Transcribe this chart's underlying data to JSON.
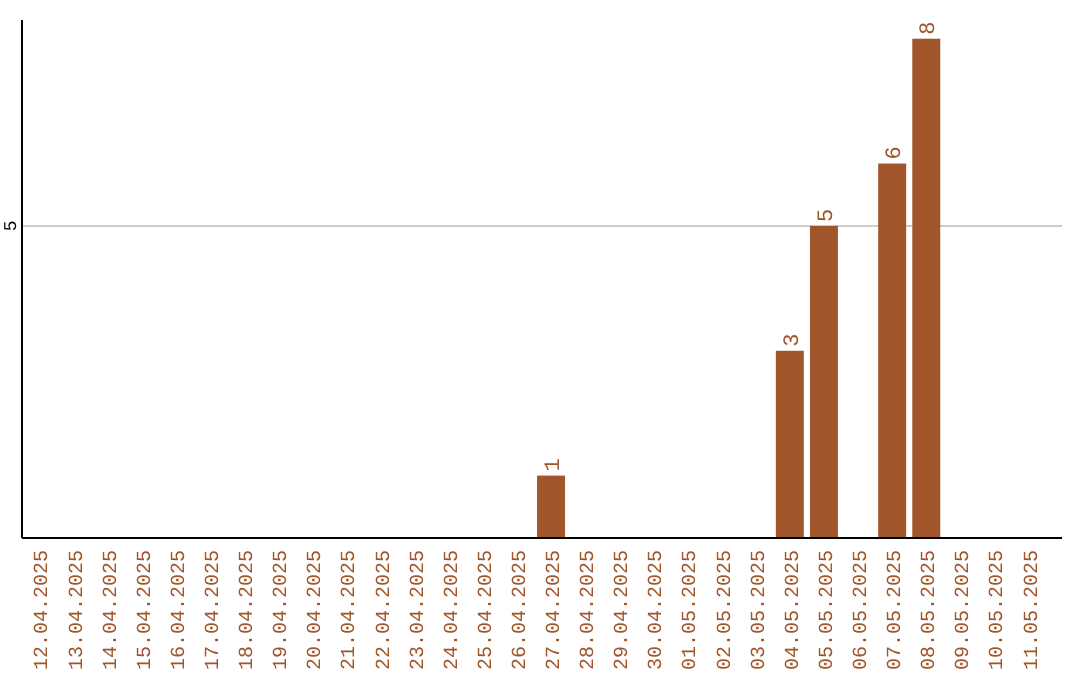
{
  "chart_data": {
    "type": "bar",
    "categories": [
      "12.04.2025",
      "13.04.2025",
      "14.04.2025",
      "15.04.2025",
      "16.04.2025",
      "17.04.2025",
      "18.04.2025",
      "19.04.2025",
      "20.04.2025",
      "21.04.2025",
      "22.04.2025",
      "23.04.2025",
      "24.04.2025",
      "25.04.2025",
      "26.04.2025",
      "27.04.2025",
      "28.04.2025",
      "29.04.2025",
      "30.04.2025",
      "01.05.2025",
      "02.05.2025",
      "03.05.2025",
      "04.05.2025",
      "05.05.2025",
      "06.05.2025",
      "07.05.2025",
      "08.05.2025",
      "09.05.2025",
      "10.05.2025",
      "11.05.2025"
    ],
    "values": [
      null,
      null,
      null,
      null,
      null,
      null,
      null,
      null,
      null,
      null,
      null,
      null,
      null,
      null,
      null,
      1,
      null,
      null,
      null,
      null,
      null,
      null,
      3,
      5,
      null,
      6,
      8,
      null,
      null,
      null
    ],
    "color": "#a0552a",
    "ylim": [
      0,
      8.3
    ],
    "yticks": [
      5
    ],
    "grid": "y",
    "data_labels": true
  }
}
